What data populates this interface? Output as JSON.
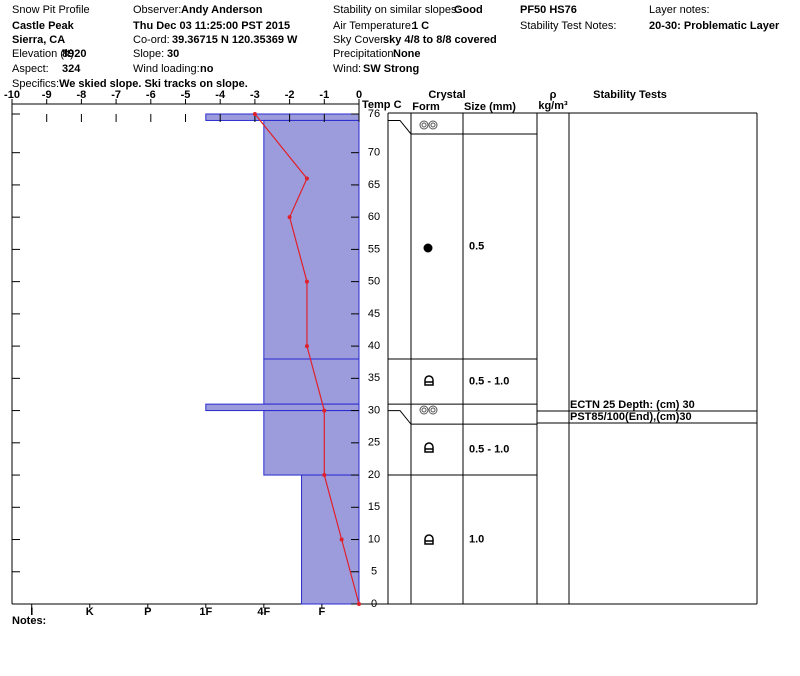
{
  "header": {
    "title": "Snow Pit Profile",
    "location": "Castle Peak",
    "region": "Sierra, CA",
    "date": "Thu Dec 03 11:25:00 PST 2015",
    "summary": "PF50 HS76",
    "stability_test_notes": "Stability Test Notes:",
    "layer_notes_label": "Layer notes:",
    "layer_note": "20-30: Problematic Layer",
    "fields": [
      {
        "label": "Elevation (ft)",
        "value": 8920
      },
      {
        "label": "Aspect:",
        "value": 324
      },
      {
        "label": "Specifics:",
        "value": "We skied slope. Ski tracks on slope."
      },
      {
        "label": "Observer:",
        "value": "Andy Anderson"
      },
      {
        "label": "Co-ord:",
        "value": "39.36715 N 120.35369 W"
      },
      {
        "label": "Slope:",
        "value": 30
      },
      {
        "label": "Wind loading:",
        "value": "no"
      },
      {
        "label": "Stability on similar slopes:",
        "value": "Good"
      },
      {
        "label": "Air Temperature:",
        "value": "1 C"
      },
      {
        "label": "Sky Cover:",
        "value": "sky 4/8 to 8/8 covered"
      },
      {
        "label": "Precipitation:",
        "value": "None"
      },
      {
        "label": "Wind:",
        "value": "SW Strong"
      }
    ]
  },
  "notes_label": "Notes:",
  "chart_data": {
    "type": "snowpit",
    "x_label": "Temp C",
    "xlim": [
      -10,
      0
    ],
    "xticks": [
      -10,
      -9,
      -8,
      -7,
      -6,
      -5,
      -4,
      -3,
      -2,
      -1,
      0
    ],
    "ylim": [
      0,
      76
    ],
    "yticks": [
      0,
      5,
      10,
      15,
      20,
      25,
      30,
      35,
      40,
      45,
      50,
      55,
      60,
      65,
      70,
      76
    ],
    "hardness_lim": [
      6.34,
      0.36
    ],
    "hardness_ticks": [
      {
        "value": 6,
        "label": "I"
      },
      {
        "value": 5,
        "label": "K"
      },
      {
        "value": 4,
        "label": "P"
      },
      {
        "value": 3,
        "label": "1F"
      },
      {
        "value": 2,
        "label": "4F"
      },
      {
        "value": 1,
        "label": "F"
      }
    ],
    "layer_color": "#9c9cdc",
    "layer_edge": "#2a2ad0",
    "temperature": {
      "color": "#e0202a",
      "heights": [
        76,
        66,
        60,
        50,
        40,
        30,
        20,
        10,
        0
      ],
      "values": [
        -3,
        -1.5,
        -2,
        -1.5,
        -1.5,
        -1,
        -1,
        -0.5,
        0
      ]
    },
    "layers": [
      {
        "top": 76,
        "bottom": 75,
        "hardness": 3
      },
      {
        "top": 75,
        "bottom": 38,
        "hardness": 2,
        "size": "0.5"
      },
      {
        "top": 38,
        "bottom": 31,
        "hardness": 2,
        "size": "0.5 - 1.0"
      },
      {
        "top": 31,
        "bottom": 30,
        "hardness": 3
      },
      {
        "top": 30,
        "bottom": 20,
        "hardness": 2,
        "size": "0.5 - 1.0"
      },
      {
        "top": 20,
        "bottom": 0,
        "hardness": 1.35,
        "size": "1.0"
      }
    ],
    "columns": {
      "crystal": "Crystal",
      "form": "Form",
      "size": "Size (mm)",
      "density": "ρ",
      "density_unit": "kg/m³",
      "stability": "Stability Tests"
    },
    "stability_tests": [
      "ECTN 25  Depth: (cm) 30",
      "PST85/100(End),(cm)30"
    ]
  }
}
